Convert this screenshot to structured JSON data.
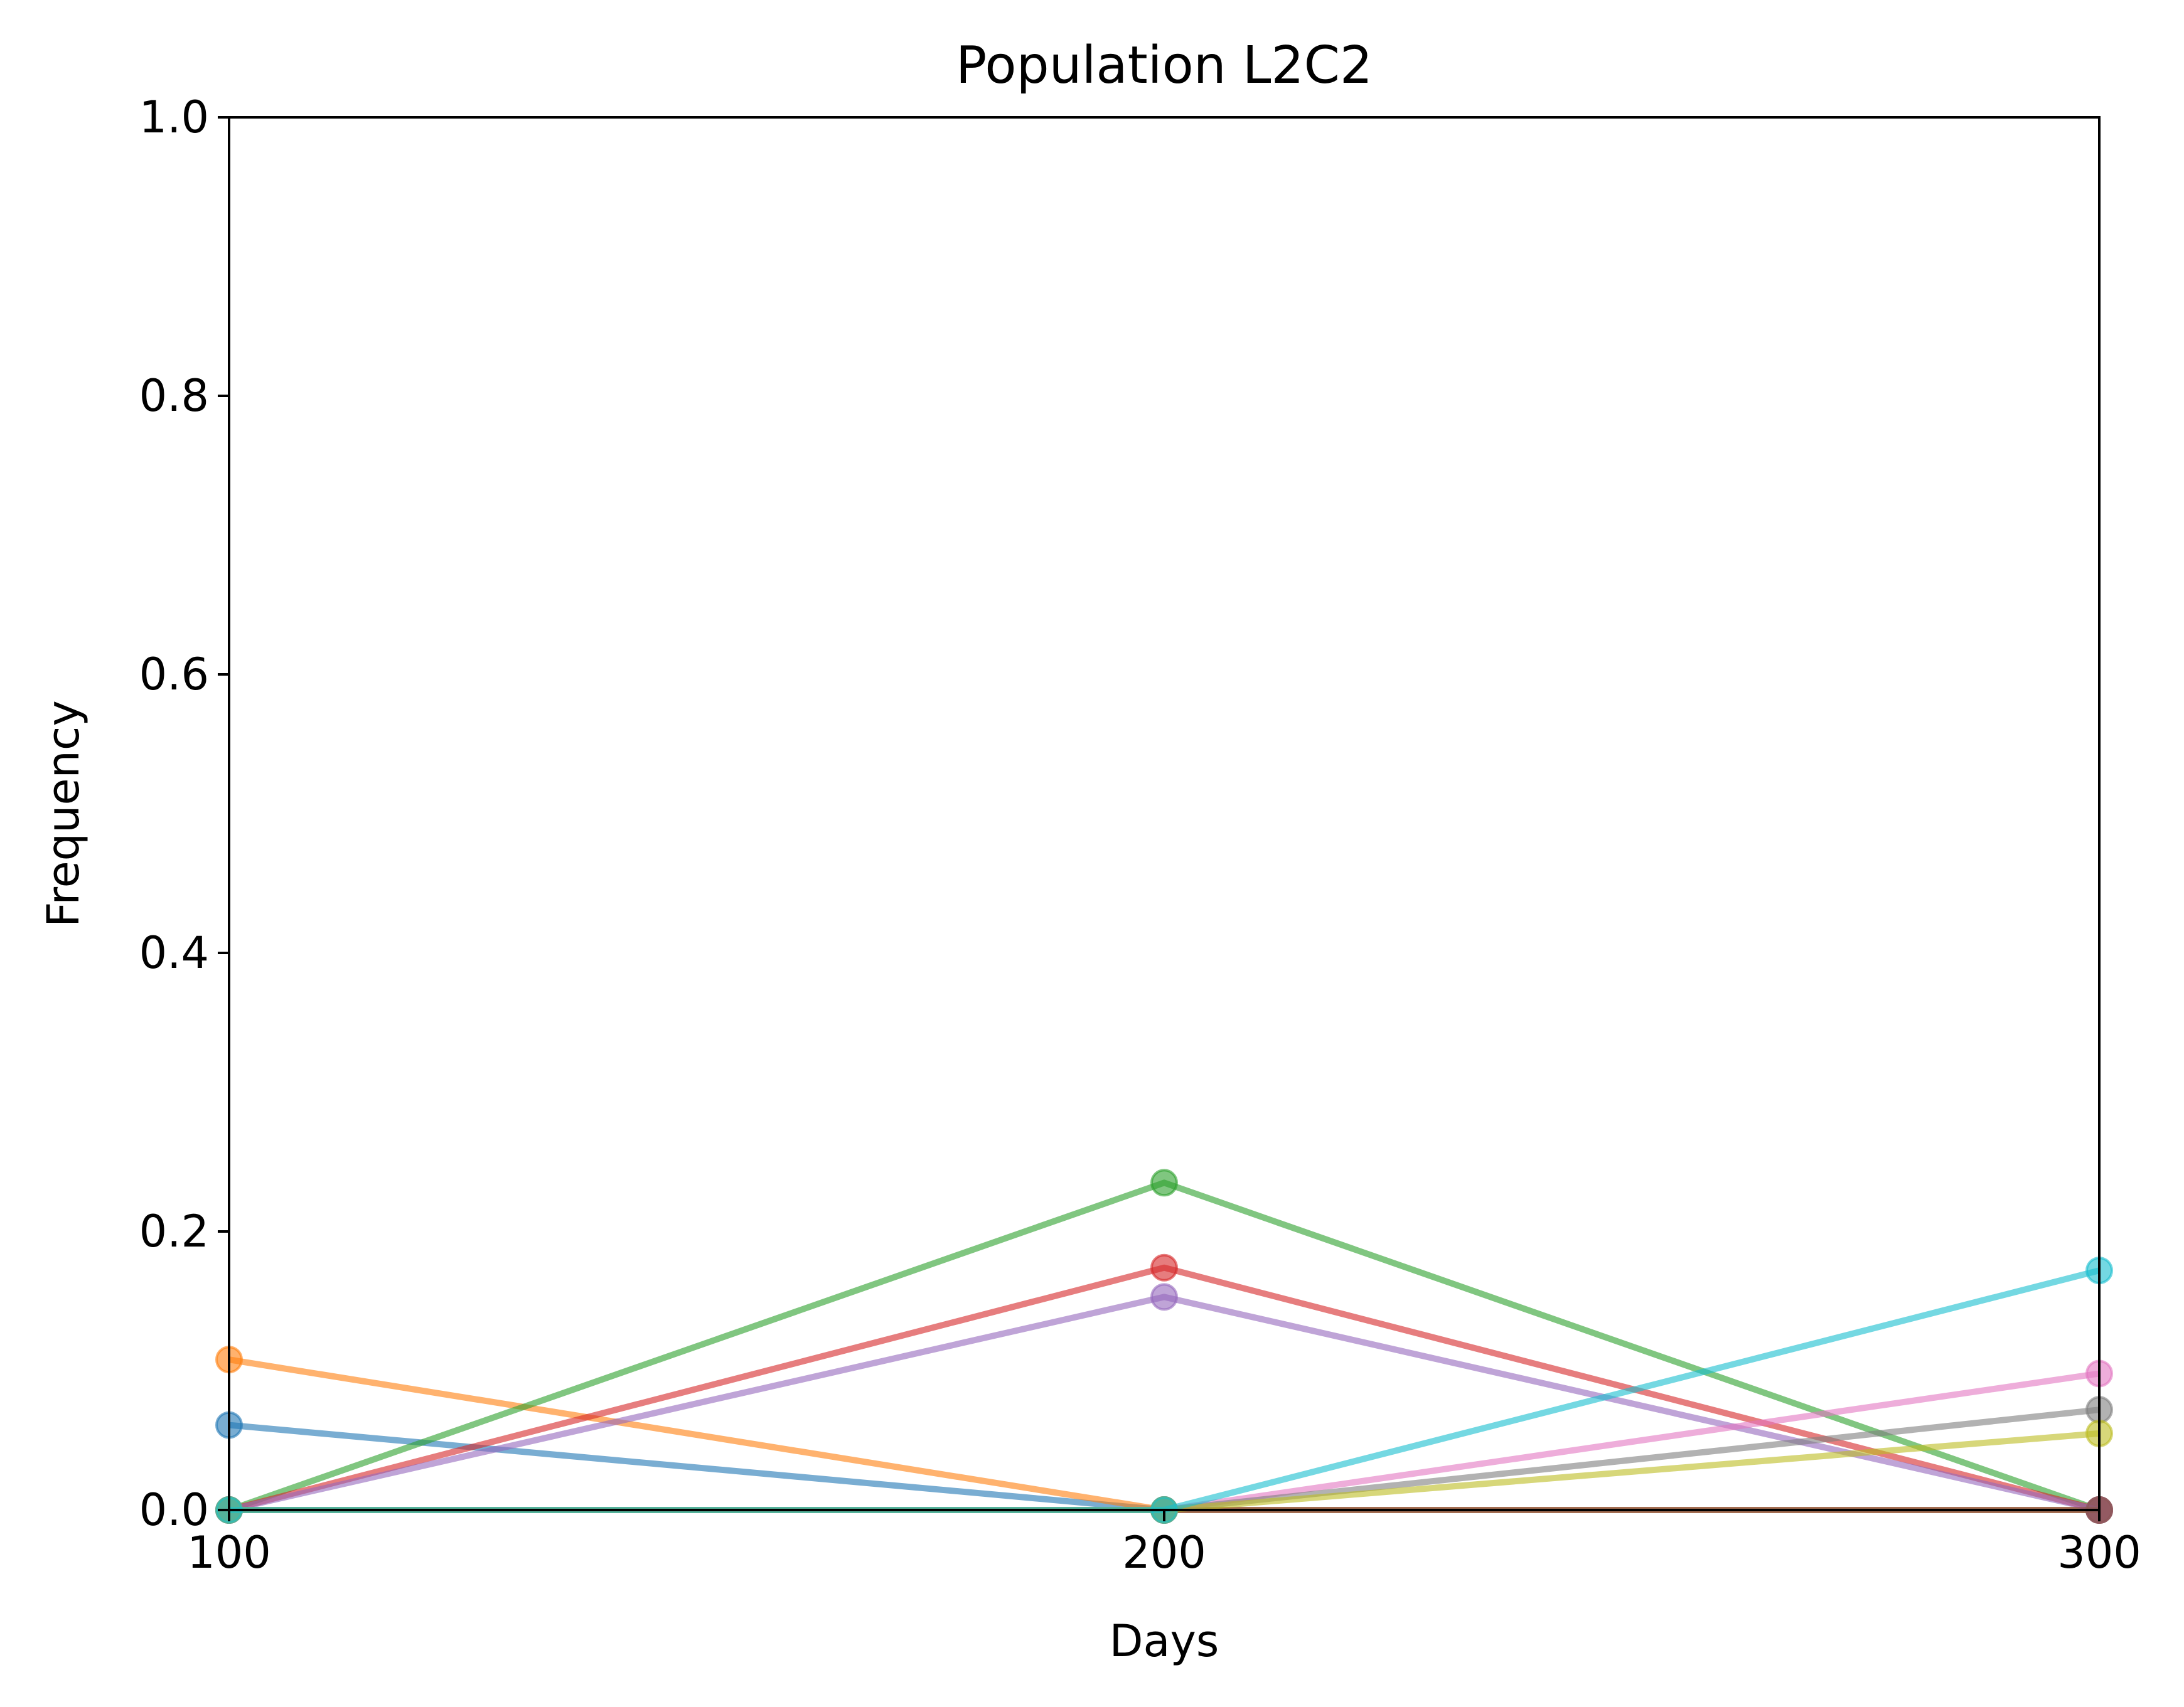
{
  "chart_data": {
    "type": "line",
    "title": "Population L2C2",
    "xlabel": "Days",
    "ylabel": "Frequency",
    "xlim": [
      100,
      300
    ],
    "ylim": [
      0.0,
      1.0
    ],
    "x": [
      100,
      200,
      300
    ],
    "xticks": [
      "100",
      "200",
      "300"
    ],
    "yticks": [
      "0.0",
      "0.2",
      "0.4",
      "0.6",
      "0.8",
      "1.0"
    ],
    "grid": false,
    "legend": "none",
    "series": [
      {
        "color": "#1f77b4",
        "values": [
          0.061,
          0.0,
          0.0
        ]
      },
      {
        "color": "#ff7f0e",
        "values": [
          0.108,
          0.0,
          0.0
        ]
      },
      {
        "color": "#2ca02c",
        "values": [
          0.0,
          0.235,
          0.0
        ]
      },
      {
        "color": "#d62728",
        "values": [
          0.0,
          0.174,
          0.0
        ]
      },
      {
        "color": "#9467bd",
        "values": [
          0.0,
          0.153,
          0.0
        ]
      },
      {
        "color": "#8c564b",
        "values": [
          0.0,
          0.0,
          0.0
        ]
      },
      {
        "color": "#e377c2",
        "values": [
          0.0,
          0.0,
          0.098
        ]
      },
      {
        "color": "#7f7f7f",
        "values": [
          0.0,
          0.0,
          0.072
        ]
      },
      {
        "color": "#bcbd22",
        "values": [
          0.0,
          0.0,
          0.055
        ]
      },
      {
        "color": "#17becf",
        "values": [
          0.0,
          0.0,
          0.172
        ]
      }
    ]
  }
}
